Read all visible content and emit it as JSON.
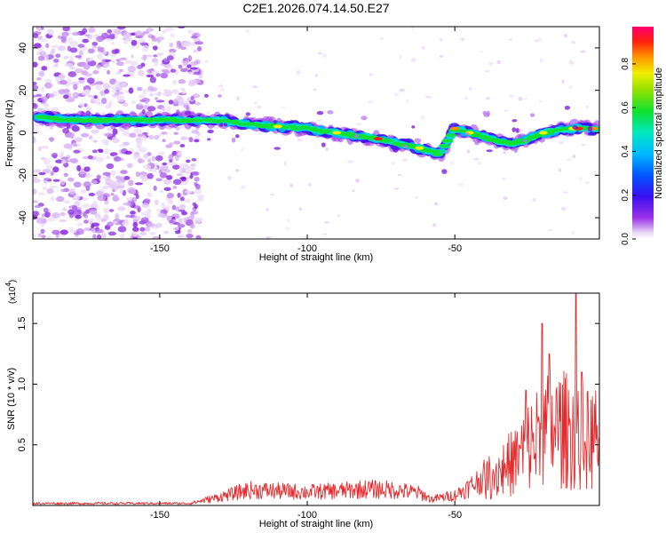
{
  "chart_data": [
    {
      "type": "heatmap",
      "title": "C2E1.2026.074.14.50.E27",
      "xlabel": "Height of straight line (km)",
      "ylabel": "Frequency (Hz)",
      "xlim": [
        -193,
        -1
      ],
      "ylim": [
        -50,
        50
      ],
      "xticks": [
        -150,
        -100,
        -50
      ],
      "yticks": [
        -40,
        -20,
        0,
        20,
        40
      ],
      "ridge": {
        "x": [
          -190,
          -180,
          -170,
          -160,
          -150,
          -140,
          -130,
          -120,
          -110,
          -100,
          -90,
          -80,
          -75,
          -70,
          -65,
          -60,
          -55,
          -50,
          -45,
          -40,
          -35,
          -30,
          -25,
          -20,
          -15,
          -10,
          -5,
          -1
        ],
        "y": [
          7,
          6,
          6,
          6,
          6,
          6,
          6,
          4,
          3,
          2,
          0,
          -2,
          -3,
          -5,
          -6,
          -8,
          -10,
          2,
          0,
          -2,
          -4,
          -5,
          -3,
          0,
          1,
          2,
          2,
          2
        ]
      },
      "colorbar": {
        "label": "Normalized spectral amplitude",
        "range": [
          0,
          0.97
        ],
        "ticks": [
          "0.0",
          "0.2",
          "0.4",
          "0.6",
          "0.8"
        ]
      }
    },
    {
      "type": "line",
      "title": "",
      "xlabel": "Height of straight line (km)",
      "ylabel": "SNR (10 * v/v)",
      "scale_label": "(x10",
      "scale_exponent": "4",
      "color": "#e8292b",
      "xlim": [
        -193,
        -1
      ],
      "ylim": [
        0,
        1.75
      ],
      "xticks": [
        -150,
        -100,
        -50
      ],
      "yticks": [
        "0.5",
        "1.0",
        "1.5"
      ],
      "envelope": {
        "x": [
          -193,
          -140,
          -135,
          -130,
          -120,
          -110,
          -100,
          -90,
          -80,
          -70,
          -62,
          -58,
          -50,
          -45,
          -40,
          -35,
          -30,
          -25,
          -20,
          -15,
          -10,
          -5,
          -1
        ],
        "y": [
          0.02,
          0.02,
          0.05,
          0.08,
          0.15,
          0.14,
          0.13,
          0.14,
          0.16,
          0.15,
          0.12,
          0.06,
          0.1,
          0.18,
          0.28,
          0.38,
          0.48,
          0.65,
          0.8,
          0.85,
          0.8,
          0.72,
          0.75
        ]
      },
      "peaks": [
        {
          "x": -20.5,
          "y": 1.5
        },
        {
          "x": -18,
          "y": 1.25
        },
        {
          "x": -9,
          "y": 1.75
        },
        {
          "x": -7,
          "y": 1.1
        },
        {
          "x": -26,
          "y": 0.95
        }
      ]
    }
  ]
}
